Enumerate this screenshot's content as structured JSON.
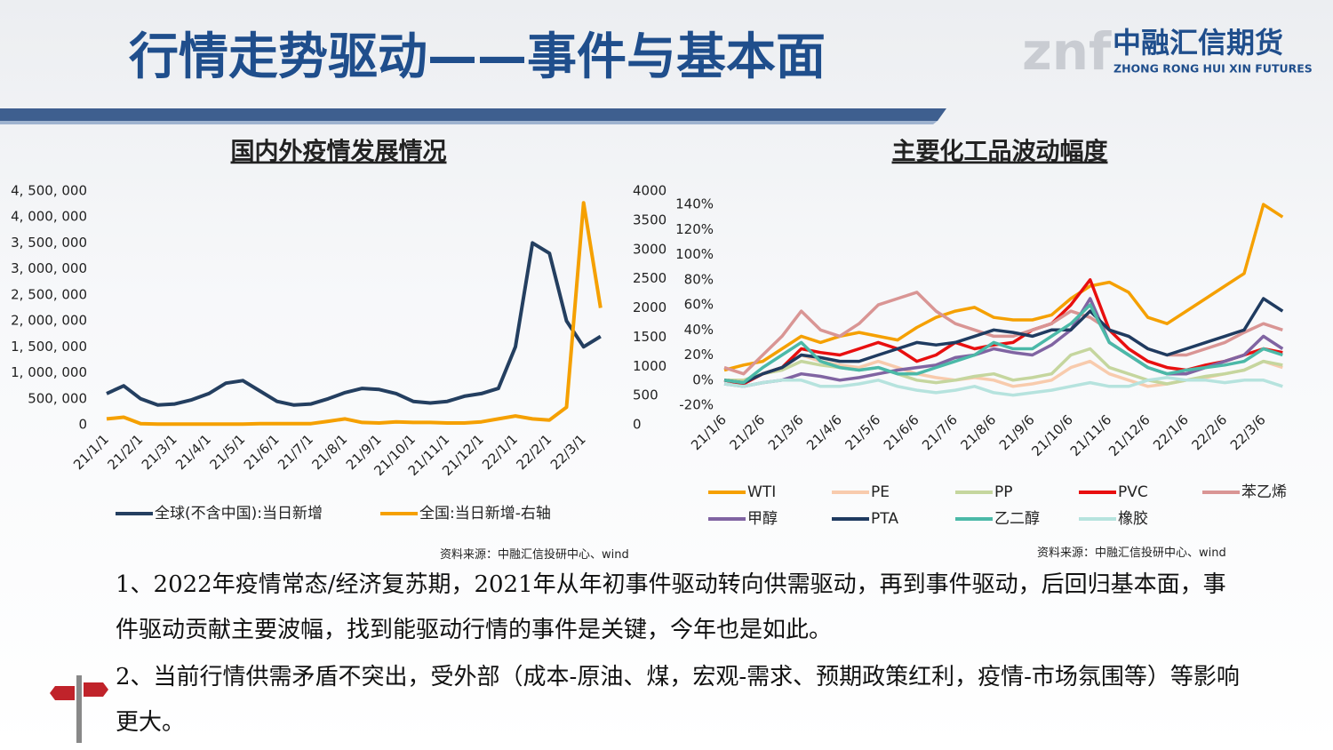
{
  "header": {
    "title": "行情走势驱动——事件与基本面",
    "logo_mark": "znf",
    "logo_name": "中融汇信期货",
    "logo_english": "ZHONG RONG HUI XIN FUTURES"
  },
  "chart_data": [
    {
      "type": "line",
      "title": "国内外疫情发展情况",
      "source": "资料来源：中融汇信投研中心、wind",
      "categories": [
        "21/1/1",
        null,
        "21/2/1",
        null,
        "21/3/1",
        null,
        "21/4/1",
        null,
        "21/5/1",
        null,
        "21/6/1",
        null,
        "21/7/1",
        null,
        "21/8/1",
        null,
        "21/9/1",
        null,
        "21/10/1",
        null,
        "21/11/1",
        null,
        "21/12/1",
        null,
        "22/1/1",
        null,
        "22/2/1",
        null,
        "22/3/1",
        null
      ],
      "series": [
        {
          "name": "全球(不含中国):当日新增",
          "color": "#243f60",
          "values": [
            600000,
            750000,
            500000,
            380000,
            400000,
            480000,
            600000,
            800000,
            850000,
            650000,
            450000,
            380000,
            400000,
            500000,
            620000,
            700000,
            680000,
            600000,
            450000,
            420000,
            450000,
            550000,
            600000,
            700000,
            1500000,
            3500000,
            3300000,
            2000000,
            1500000,
            1700000
          ]
        },
        {
          "name": "全国:当日新增-右轴",
          "color": "#f5a000",
          "axis": "y2",
          "values": [
            100,
            130,
            20,
            10,
            10,
            10,
            10,
            10,
            10,
            20,
            20,
            20,
            20,
            60,
            100,
            40,
            30,
            50,
            40,
            40,
            30,
            30,
            50,
            100,
            150,
            100,
            80,
            300,
            3800,
            2000
          ]
        }
      ],
      "ylim": [
        0,
        4500000
      ],
      "yticks": [
        0,
        {
          "value": 500000,
          "label": "500, 000"
        },
        {
          "value": 1000000,
          "label": "1, 000, 000"
        },
        {
          "value": 1500000,
          "label": "1, 500, 000"
        },
        {
          "value": 2000000,
          "label": "2, 000, 000"
        },
        {
          "value": 2500000,
          "label": "2, 500, 000"
        },
        {
          "value": 3000000,
          "label": "3, 000, 000"
        },
        {
          "value": 3500000,
          "label": "3, 500, 000"
        },
        {
          "value": 4000000,
          "label": "4, 000, 000"
        },
        {
          "value": 4500000,
          "label": "4, 500, 000"
        }
      ],
      "y2lim": [
        0,
        4000
      ],
      "y2ticks": [
        0,
        500,
        1000,
        1500,
        2000,
        2500,
        3000,
        3500,
        4000
      ],
      "grid": false
    },
    {
      "type": "line",
      "title": "主要化工品波动幅度",
      "source": "资料来源：中融汇信投研中心、wind",
      "categories": [
        "21/1/6",
        null,
        "21/2/6",
        null,
        "21/3/6",
        null,
        "21/4/6",
        null,
        "21/5/6",
        null,
        "21/6/6",
        null,
        "21/7/6",
        null,
        "21/8/6",
        null,
        "21/9/6",
        null,
        "21/10/6",
        null,
        "21/11/6",
        null,
        "21/12/6",
        null,
        "22/1/6",
        null,
        "22/2/6",
        null,
        "22/3/6",
        null
      ],
      "series": [
        {
          "name": "WTI",
          "color": "#f5a000",
          "values": [
            8,
            12,
            15,
            25,
            35,
            30,
            35,
            38,
            35,
            32,
            42,
            50,
            55,
            58,
            50,
            48,
            48,
            52,
            65,
            75,
            78,
            70,
            50,
            45,
            55,
            65,
            75,
            85,
            140,
            130
          ]
        },
        {
          "name": "PE",
          "color": "#f8cbad",
          "values": [
            0,
            -2,
            5,
            10,
            20,
            15,
            12,
            10,
            15,
            10,
            5,
            2,
            0,
            2,
            0,
            -5,
            -3,
            0,
            10,
            15,
            5,
            0,
            -5,
            -3,
            0,
            2,
            5,
            8,
            15,
            10
          ]
        },
        {
          "name": "PP",
          "color": "#c5d69e",
          "values": [
            0,
            0,
            5,
            8,
            15,
            12,
            10,
            8,
            10,
            5,
            0,
            -2,
            0,
            3,
            5,
            0,
            2,
            5,
            20,
            25,
            10,
            5,
            0,
            -3,
            0,
            3,
            5,
            8,
            15,
            12
          ]
        },
        {
          "name": "PVC",
          "color": "#e80f0f",
          "values": [
            0,
            -3,
            5,
            10,
            25,
            22,
            20,
            25,
            30,
            25,
            15,
            20,
            30,
            25,
            28,
            30,
            40,
            45,
            60,
            80,
            40,
            25,
            15,
            10,
            8,
            12,
            15,
            20,
            25,
            22
          ]
        },
        {
          "name": "苯乙烯",
          "color": "#d99594",
          "values": [
            10,
            5,
            20,
            35,
            55,
            40,
            35,
            45,
            60,
            65,
            70,
            55,
            45,
            40,
            35,
            35,
            40,
            45,
            55,
            50,
            40,
            35,
            25,
            20,
            20,
            25,
            30,
            38,
            45,
            40
          ]
        },
        {
          "name": "甲醇",
          "color": "#8064a2",
          "values": [
            -3,
            -5,
            -2,
            0,
            5,
            3,
            0,
            2,
            5,
            8,
            10,
            12,
            18,
            20,
            25,
            22,
            20,
            28,
            40,
            65,
            30,
            20,
            10,
            5,
            5,
            10,
            15,
            20,
            35,
            25
          ]
        },
        {
          "name": "PTA",
          "color": "#1f3b60",
          "values": [
            0,
            -2,
            5,
            10,
            20,
            18,
            15,
            15,
            20,
            25,
            30,
            28,
            30,
            35,
            40,
            38,
            35,
            40,
            40,
            55,
            40,
            35,
            25,
            20,
            25,
            30,
            35,
            40,
            65,
            55
          ]
        },
        {
          "name": "乙二醇",
          "color": "#4bb9a8",
          "values": [
            0,
            -2,
            10,
            20,
            30,
            15,
            10,
            8,
            10,
            5,
            5,
            10,
            15,
            20,
            30,
            25,
            25,
            35,
            45,
            60,
            30,
            20,
            10,
            5,
            8,
            10,
            12,
            15,
            25,
            20
          ]
        },
        {
          "name": "橡胶",
          "color": "#b6e3de",
          "values": [
            -3,
            -5,
            -2,
            0,
            0,
            -5,
            -5,
            -3,
            0,
            -5,
            -8,
            -10,
            -8,
            -5,
            -10,
            -12,
            -10,
            -8,
            -5,
            -2,
            -5,
            -5,
            0,
            2,
            0,
            0,
            -2,
            0,
            0,
            -5
          ]
        }
      ],
      "ylim": [
        -20,
        150
      ],
      "yticks": [
        {
          "value": -20,
          "label": "-20%"
        },
        {
          "value": 0,
          "label": "0%"
        },
        {
          "value": 20,
          "label": "20%"
        },
        {
          "value": 40,
          "label": "40%"
        },
        {
          "value": 60,
          "label": "60%"
        },
        {
          "value": 80,
          "label": "80%"
        },
        {
          "value": 100,
          "label": "100%"
        },
        {
          "value": 120,
          "label": "120%"
        },
        {
          "value": 140,
          "label": "140%"
        }
      ],
      "grid": false
    }
  ],
  "body": {
    "paragraphs": [
      "1、2022年疫情常态/经济复苏期，2021年从年初事件驱动转向供需驱动，再到事件驱动，后回归基本面，事件驱动贡献主要波幅，找到能驱动行情的事件是关键，今年也是如此。",
      "2、当前行情供需矛盾不突出，受外部（成本-原油、煤，宏观-需求、预期政策红利，疫情-市场氛围等）等影响更大。"
    ]
  }
}
